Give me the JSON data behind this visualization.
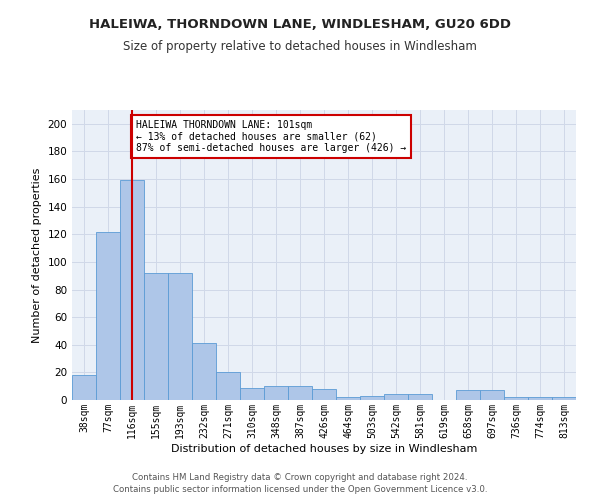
{
  "title": "HALEIWA, THORNDOWN LANE, WINDLESHAM, GU20 6DD",
  "subtitle": "Size of property relative to detached houses in Windlesham",
  "xlabel": "Distribution of detached houses by size in Windlesham",
  "ylabel": "Number of detached properties",
  "categories": [
    "38sqm",
    "77sqm",
    "116sqm",
    "155sqm",
    "193sqm",
    "232sqm",
    "271sqm",
    "310sqm",
    "348sqm",
    "387sqm",
    "426sqm",
    "464sqm",
    "503sqm",
    "542sqm",
    "581sqm",
    "619sqm",
    "658sqm",
    "697sqm",
    "736sqm",
    "774sqm",
    "813sqm"
  ],
  "values": [
    18,
    122,
    159,
    92,
    92,
    41,
    20,
    9,
    10,
    10,
    8,
    2,
    3,
    4,
    4,
    0,
    7,
    7,
    2,
    2,
    2
  ],
  "bar_color": "#aec6e8",
  "bar_edge_color": "#5b9bd5",
  "vline_x_index": 2,
  "vline_color": "#cc0000",
  "annotation_text": "HALEIWA THORNDOWN LANE: 101sqm\n← 13% of detached houses are smaller (62)\n87% of semi-detached houses are larger (426) →",
  "annotation_box_color": "#ffffff",
  "annotation_box_edge": "#cc0000",
  "grid_color": "#d0d8e8",
  "bg_color": "#eaf0f8",
  "ylim": [
    0,
    210
  ],
  "yticks": [
    0,
    20,
    40,
    60,
    80,
    100,
    120,
    140,
    160,
    180,
    200
  ],
  "footer1": "Contains HM Land Registry data © Crown copyright and database right 2024.",
  "footer2": "Contains public sector information licensed under the Open Government Licence v3.0.",
  "title_fontsize": 9.5,
  "subtitle_fontsize": 8.5,
  "xlabel_fontsize": 8,
  "ylabel_fontsize": 8,
  "tick_fontsize": 7,
  "annotation_fontsize": 7
}
